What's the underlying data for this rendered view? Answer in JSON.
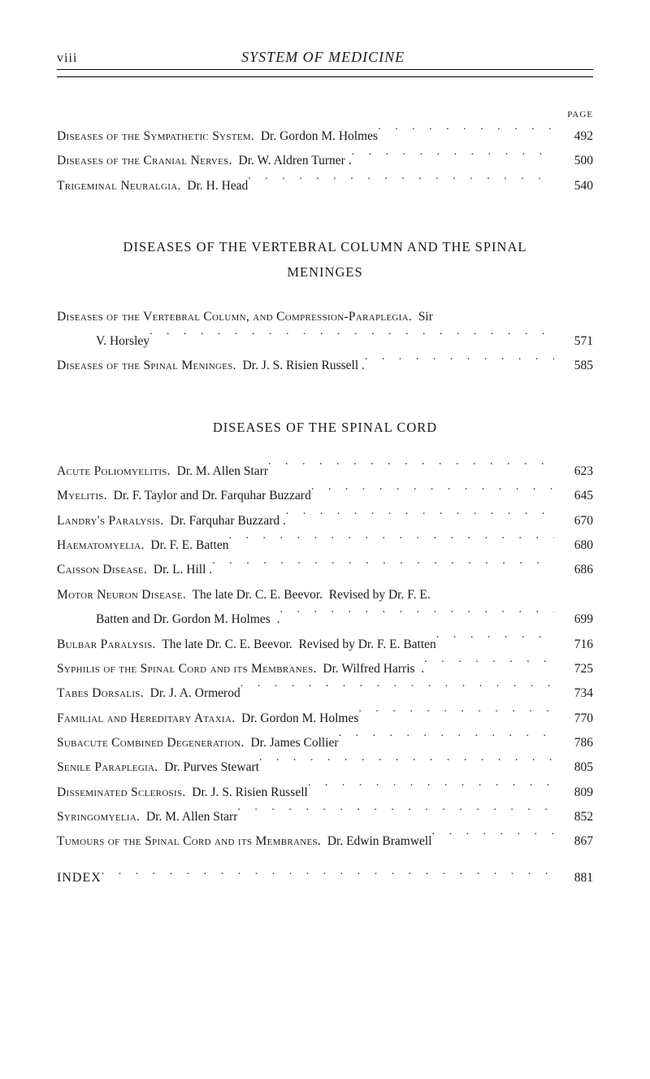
{
  "header": {
    "page_marker": "viii",
    "running_title": "SYSTEM OF MEDICINE",
    "page_label": "PAGE"
  },
  "top_block": {
    "entries": [
      {
        "sc": "Diseases of the Sympathetic System.",
        "plain": "  Dr. Gordon M. Holmes",
        "page": "492"
      },
      {
        "sc": "Diseases of the Cranial Nerves.",
        "plain": "  Dr. W. Aldren Turner .",
        "page": "500"
      },
      {
        "sc": "Trigeminal Neuralgia.",
        "plain": "  Dr. H. Head",
        "page": "540"
      }
    ]
  },
  "section1": {
    "title": "DISEASES OF THE VERTEBRAL COLUMN AND THE SPINAL\nMENINGES",
    "entries": [
      {
        "sc": "Diseases of the Vertebral Column, and Compression-Paraplegia.",
        "plain": "  Sir",
        "page": "",
        "nopage": true
      },
      {
        "cont": true,
        "plain": "V. Horsley",
        "page": "571"
      },
      {
        "sc": "Diseases of the Spinal Meninges.",
        "plain": "  Dr. J. S. Risien Russell .",
        "page": "585"
      }
    ]
  },
  "section2": {
    "title": "DISEASES OF THE SPINAL CORD",
    "entries": [
      {
        "sc": "Acute Poliomyelitis.",
        "plain": "  Dr. M. Allen Starr",
        "page": "623"
      },
      {
        "sc": "Myelitis.",
        "plain": "  Dr. F. Taylor and Dr. Farquhar Buzzard",
        "page": "645"
      },
      {
        "sc": "Landry's Paralysis.",
        "plain": "  Dr. Farquhar Buzzard .",
        "page": "670"
      },
      {
        "sc": "Haematomyelia.",
        "plain": "  Dr. F. E. Batten",
        "page": "680"
      },
      {
        "sc": "Caisson Disease.",
        "plain": "  Dr. L. Hill .",
        "page": "686"
      },
      {
        "sc": "Motor Neuron Disease.",
        "plain": "  The late Dr. C. E. Beevor.  Revised by Dr. F. E.",
        "page": "",
        "nopage": true
      },
      {
        "cont": true,
        "plain": "Batten and Dr. Gordon M. Holmes  .",
        "page": "699"
      },
      {
        "sc": "Bulbar Paralysis.",
        "plain": "  The late Dr. C. E. Beevor.  Revised by Dr. F. E. Batten",
        "page": "716"
      },
      {
        "sc": "Syphilis of the Spinal Cord and its Membranes.",
        "plain": "  Dr. Wilfred Harris  .",
        "page": "725"
      },
      {
        "sc": "Tabes Dorsalis.",
        "plain": "  Dr. J. A. Ormerod",
        "page": "734"
      },
      {
        "sc": "Familial and Hereditary Ataxia.",
        "plain": "  Dr. Gordon M. Holmes",
        "page": "770"
      },
      {
        "sc": "Subacute Combined Degeneration.",
        "plain": "  Dr. James Collier",
        "page": "786"
      },
      {
        "sc": "Senile Paraplegia.",
        "plain": "  Dr. Purves Stewart",
        "page": "805"
      },
      {
        "sc": "Disseminated Sclerosis.",
        "plain": "  Dr. J. S. Risien Russell",
        "page": "809"
      },
      {
        "sc": "Syringomyelia.",
        "plain": "  Dr. M. Allen Starr",
        "page": "852"
      },
      {
        "sc": "Tumours of the Spinal Cord and its Membranes.",
        "plain": "  Dr. Edwin Bramwell",
        "page": "867"
      }
    ]
  },
  "index": {
    "label": "INDEX",
    "page": "881"
  }
}
